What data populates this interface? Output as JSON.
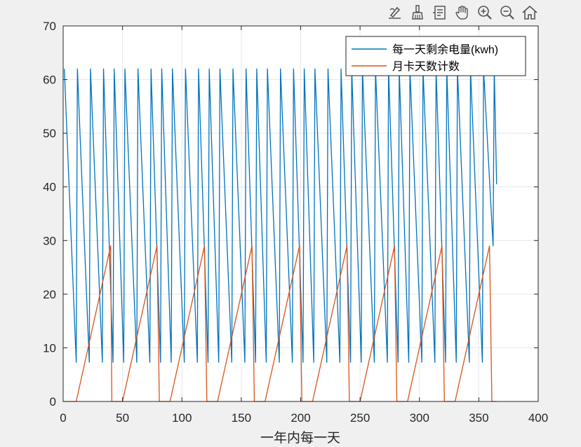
{
  "toolbar": [
    {
      "name": "edit-plot-icon"
    },
    {
      "name": "brush-icon"
    },
    {
      "name": "data-tips-icon"
    },
    {
      "name": "pan-hand-icon"
    },
    {
      "name": "zoom-in-icon"
    },
    {
      "name": "zoom-out-icon"
    },
    {
      "name": "home-icon"
    }
  ],
  "chart_data": {
    "type": "line",
    "xlabel": "一年内每一天",
    "ylabel": "",
    "title": "",
    "xlim": [
      0,
      400
    ],
    "ylim": [
      0,
      70
    ],
    "xticks": [
      0,
      50,
      100,
      150,
      200,
      250,
      300,
      350,
      400
    ],
    "yticks": [
      0,
      10,
      20,
      30,
      40,
      50,
      60,
      70
    ],
    "grid": true,
    "legend": "top-right",
    "series": [
      {
        "name": "每一天剩余电量(kwh)",
        "color": "#0072BD",
        "x": [
          1,
          11,
          12,
          22,
          23,
          33,
          34,
          42,
          43,
          51,
          52,
          62,
          63,
          73,
          74,
          82,
          83,
          91,
          92,
          102,
          103,
          113,
          114,
          122,
          123,
          131,
          132,
          142,
          143,
          153,
          154,
          162,
          163,
          171,
          172,
          182,
          183,
          193,
          194,
          202,
          203,
          211,
          212,
          222,
          223,
          233,
          234,
          242,
          243,
          251,
          252,
          262,
          263,
          273,
          274,
          282,
          283,
          291,
          292,
          302,
          303,
          313,
          314,
          322,
          323,
          331,
          332,
          342,
          343,
          353,
          354,
          362,
          363,
          365
        ],
        "y": [
          62,
          7.3,
          62,
          7.3,
          62,
          7.3,
          62,
          7.3,
          62,
          7.3,
          62,
          7.3,
          62,
          7.3,
          62,
          7.3,
          62,
          7.3,
          62,
          7.3,
          62,
          7.3,
          62,
          7.3,
          62,
          7.3,
          62,
          7.3,
          62,
          7.3,
          62,
          7.3,
          62,
          7.3,
          62,
          7.3,
          62,
          7.3,
          62,
          7.3,
          62,
          7.3,
          62,
          7.3,
          62,
          7.3,
          62,
          7.3,
          62,
          7.3,
          62,
          7.3,
          62,
          7.3,
          62,
          7.3,
          62,
          7.3,
          62,
          7.3,
          62,
          7.3,
          62,
          7.3,
          62,
          7.3,
          62,
          7.3,
          62,
          7.3,
          62,
          29,
          62,
          40.5
        ]
      },
      {
        "name": "月卡天数计数",
        "color": "#D95319",
        "x": [
          0,
          11,
          40,
          41,
          50,
          79,
          81,
          90,
          119,
          121,
          130,
          159,
          161,
          170,
          199,
          201,
          210,
          239,
          241,
          250,
          279,
          281,
          290,
          319,
          321,
          330,
          359,
          361,
          365
        ],
        "y": [
          0,
          0,
          29,
          0,
          0,
          29,
          0,
          0,
          29,
          0,
          0,
          29,
          0,
          0,
          29,
          0,
          0,
          29,
          0,
          0,
          29,
          0,
          0,
          29,
          0,
          0,
          29,
          0,
          0
        ]
      }
    ]
  }
}
